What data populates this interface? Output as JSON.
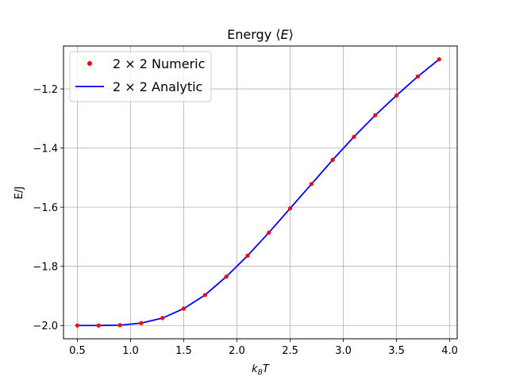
{
  "chart_data": {
    "type": "line",
    "title": "Energy ⟨E⟩",
    "xlabel": "k_B T",
    "ylabel": "E/J",
    "xlim": [
      0.37,
      4.07
    ],
    "ylim": [
      -2.045,
      -1.055
    ],
    "xticks": [
      0.5,
      1.0,
      1.5,
      2.0,
      2.5,
      3.0,
      3.5,
      4.0
    ],
    "xtick_labels": [
      "0.5",
      "1.0",
      "1.5",
      "2.0",
      "2.5",
      "3.0",
      "3.5",
      "4.0"
    ],
    "yticks": [
      -2.0,
      -1.8,
      -1.6,
      -1.4,
      -1.2
    ],
    "ytick_labels": [
      "−2.0",
      "−1.8",
      "−1.6",
      "−1.4",
      "−1.2"
    ],
    "grid": true,
    "legend_position": "top-left",
    "series": [
      {
        "name": "2 × 2 Numeric",
        "style": "markers",
        "color": "#ff0000",
        "x": [
          0.5,
          0.7,
          0.9,
          1.1,
          1.3,
          1.5,
          1.7,
          1.9,
          2.1,
          2.3,
          2.5,
          2.7,
          2.9,
          3.1,
          3.3,
          3.5,
          3.7,
          3.9
        ],
        "y": [
          -2.0,
          -2.0,
          -1.999,
          -1.992,
          -1.975,
          -1.943,
          -1.897,
          -1.835,
          -1.764,
          -1.686,
          -1.604,
          -1.522,
          -1.44,
          -1.362,
          -1.289,
          -1.222,
          -1.158,
          -1.1
        ]
      },
      {
        "name": "2 × 2 Analytic",
        "style": "line",
        "color": "#0000ff",
        "x": [
          0.5,
          0.7,
          0.9,
          1.1,
          1.3,
          1.5,
          1.7,
          1.9,
          2.1,
          2.3,
          2.5,
          2.7,
          2.9,
          3.1,
          3.3,
          3.5,
          3.7,
          3.9
        ],
        "y": [
          -2.0,
          -2.0,
          -1.999,
          -1.992,
          -1.975,
          -1.943,
          -1.897,
          -1.835,
          -1.764,
          -1.686,
          -1.604,
          -1.522,
          -1.44,
          -1.362,
          -1.289,
          -1.222,
          -1.158,
          -1.1
        ]
      }
    ]
  }
}
